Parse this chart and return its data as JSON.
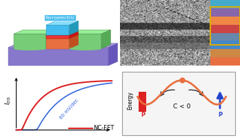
{
  "fig_width": 3.48,
  "fig_height": 2.0,
  "dpi": 100,
  "bg_color": "#ffffff",
  "top_left": {
    "bg": "#8878cc",
    "substrate_face": "#8878cc",
    "substrate_top": "#aa99dd",
    "substrate_right": "#6655bb",
    "green_face": "#77cc77",
    "green_top": "#99ee99",
    "green_right": "#55aa55",
    "orange_face": "#e87040",
    "orange_top": "#f09060",
    "orange_right": "#c05020",
    "red_face": "#ee3333",
    "red_top": "#ff5555",
    "red_right": "#cc1111",
    "cyan_face": "#44bbee",
    "cyan_top": "#88ddff",
    "cyan_right": "#2299bb",
    "label": "Ferroelectric",
    "label_color": "#ffffff",
    "label_fontsize": 5.0
  },
  "bottom_left": {
    "bg": "#ffffff",
    "red_line_color": "#dd2222",
    "blue_line_color": "#3366dd",
    "annotation": "60 mV/dec",
    "annotation_color": "#3366dd",
    "legend_label": "NC-FET",
    "legend_color": "#dd2222",
    "annotation_fontsize": 5,
    "legend_fontsize": 6
  },
  "bottom_right": {
    "bg": "#f5f5f5",
    "border_color": "#888888",
    "well_color": "#e87040",
    "left_bar_color": "#dd2222",
    "right_bar_color": "#2244cc",
    "dot_color": "#e87040",
    "label_energy": "Energy",
    "label_c": "C < 0",
    "label_p": "P",
    "fontsize": 6
  }
}
